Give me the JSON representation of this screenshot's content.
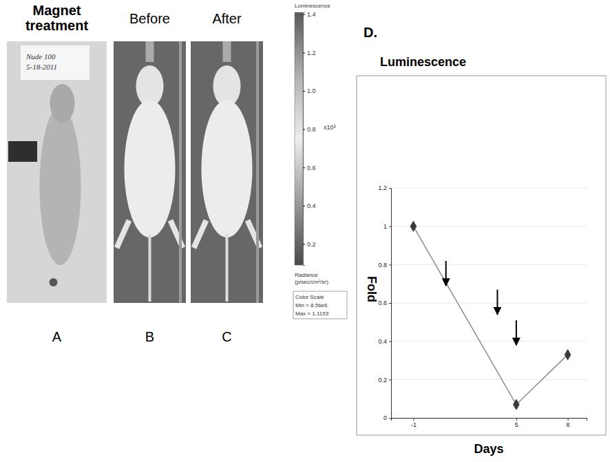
{
  "figure": {
    "panel_a": {
      "letter": "A",
      "title": "Magnet treatment",
      "note": [
        "Nude 100",
        "5-18-2011"
      ]
    },
    "panel_b": {
      "letter": "B",
      "title": "Before"
    },
    "panel_c": {
      "letter": "C",
      "title": "After"
    },
    "colorbar": {
      "title": "Luminescence",
      "unit": "x10³",
      "range": [
        0.09,
        1.41
      ],
      "ticks": [
        0.2,
        0.4,
        0.6,
        0.8,
        {
          "value": 1,
          "label": "1.0"
        },
        1.2,
        1.4
      ],
      "label": "Radiance (p/sec/cm²/sr)",
      "scale_title": "Color Scale",
      "min_label": "Min = 8.56e6",
      "max_label": "Max = 1.1153"
    },
    "panel_d_letter": "D."
  },
  "chart_data": {
    "type": "line",
    "title": "Luminescence",
    "x_label": "Days",
    "y_label": "Fold",
    "x": [
      -1,
      5,
      8
    ],
    "values": [
      1,
      0.07,
      0.33
    ],
    "color": "#8c8c8c",
    "marker": "diamond",
    "xlim": [
      -2.3,
      9.1
    ],
    "xticks": [
      -1,
      5,
      8
    ],
    "ylim": [
      0,
      1.2
    ],
    "yticks": [
      0,
      0.2,
      0.4,
      0.6,
      0.8,
      1,
      1.2
    ],
    "grid": true,
    "arrows": {
      "x": [
        0.9,
        3.9,
        5
      ],
      "y": [
        0.69,
        0.54,
        0.38
      ]
    }
  }
}
